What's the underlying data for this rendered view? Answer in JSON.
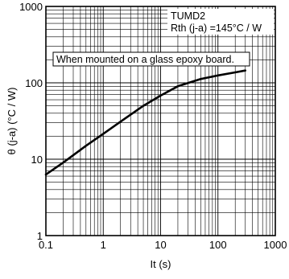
{
  "chart_data": {
    "type": "line",
    "xscale": "log",
    "yscale": "log",
    "xlim": [
      0.1,
      1000
    ],
    "ylim": [
      1,
      1000
    ],
    "xlabel": "It (s)",
    "ylabel": "θ (j-a) (°C / W)",
    "x_ticks": [
      0.1,
      1,
      10,
      100,
      1000
    ],
    "x_tick_labels": [
      "0.1",
      "1",
      "10",
      "100",
      "1000"
    ],
    "y_ticks": [
      1,
      10,
      100,
      1000
    ],
    "y_tick_labels": [
      "1",
      "10",
      "100",
      "1000"
    ],
    "grid": true,
    "series": [
      {
        "x": [
          0.1,
          0.2,
          0.5,
          1,
          2,
          5,
          10,
          20,
          50,
          100,
          200,
          300
        ],
        "y": [
          6.3,
          9.0,
          15.0,
          21.5,
          31,
          50,
          68,
          90,
          112,
          125,
          137,
          145
        ]
      }
    ],
    "annotations": {
      "device": "TUMD2",
      "rth": "Rth (j-a) =145°C / W",
      "mounting": "When mounted on a glass epoxy board."
    }
  }
}
